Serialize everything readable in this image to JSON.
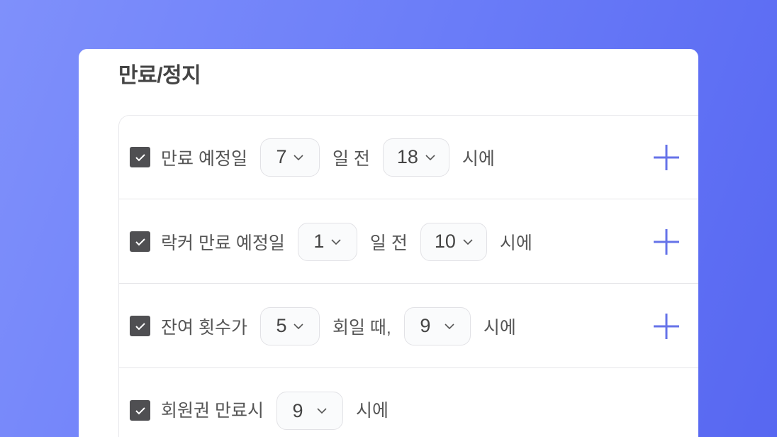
{
  "section_title": "만료/정지",
  "accent_color": "#6673e8",
  "rows": [
    {
      "checked": true,
      "label": "만료 예정일",
      "select1": "7",
      "mid": "일 전",
      "select2": "18",
      "suffix": "시에",
      "has_add": true
    },
    {
      "checked": true,
      "label": "락커 만료 예정일",
      "select1": "1",
      "mid": "일 전",
      "select2": "10",
      "suffix": "시에",
      "has_add": true
    },
    {
      "checked": true,
      "label": "잔여 횟수가",
      "select1": "5",
      "mid": "회일 때,",
      "select2": "9",
      "suffix": "시에",
      "has_add": true
    },
    {
      "checked": true,
      "label": "회원권 만료시",
      "select1": "9",
      "suffix": "시에",
      "has_add": false
    }
  ]
}
